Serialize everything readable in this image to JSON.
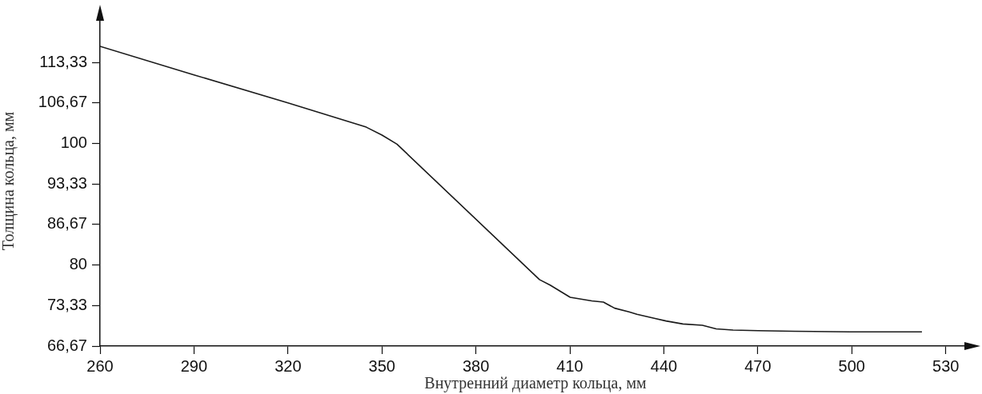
{
  "chart_data": {
    "type": "line",
    "xlabel": "Внутренний диаметр кольца, мм",
    "ylabel": "Толщина кольца, мм",
    "x": [
      260,
      290,
      320,
      345,
      350,
      354.8,
      400.3,
      403.7,
      410.1,
      417.0,
      420.7,
      424.3,
      428.9,
      431.4,
      437.2,
      440.7,
      446.1,
      452.3,
      456.7,
      462.1,
      470.1,
      481.6,
      499.4,
      522.4
    ],
    "series": [
      {
        "color": "#1a1a1a",
        "values": [
          116.0,
          111.3,
          106.7,
          102.7,
          101.4,
          99.9,
          77.6,
          76.7,
          74.7,
          74.1,
          73.9,
          72.9,
          72.3,
          71.9,
          71.2,
          70.8,
          70.3,
          70.1,
          69.5,
          69.3,
          69.2,
          69.1,
          69.0,
          69.0
        ]
      }
    ],
    "xlim": [
      260,
      538
    ],
    "ylim": [
      66.67,
      121
    ],
    "xticks": [
      260,
      290,
      320,
      350,
      380,
      410,
      440,
      470,
      500,
      530
    ],
    "yticks": [
      {
        "value": 66.67,
        "label": "66,67"
      },
      {
        "value": 73.33,
        "label": "73,33"
      },
      {
        "value": 80,
        "label": "80"
      },
      {
        "value": 86.67,
        "label": "86,67"
      },
      {
        "value": 93.33,
        "label": "93,33"
      },
      {
        "value": 100,
        "label": "100"
      },
      {
        "value": 106.67,
        "label": "106,67"
      },
      {
        "value": 113.33,
        "label": "113,33"
      }
    ],
    "marker": "none",
    "line_style": "solid",
    "legend": false
  }
}
